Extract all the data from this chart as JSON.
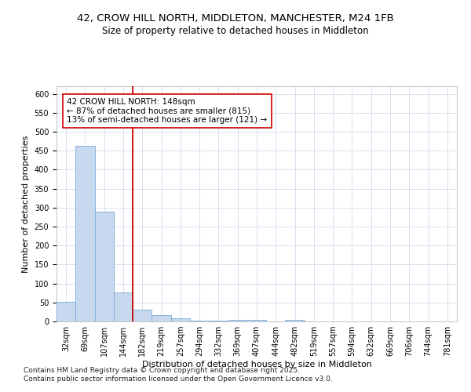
{
  "title_line1": "42, CROW HILL NORTH, MIDDLETON, MANCHESTER, M24 1FB",
  "title_line2": "Size of property relative to detached houses in Middleton",
  "xlabel": "Distribution of detached houses by size in Middleton",
  "ylabel": "Number of detached properties",
  "categories": [
    "32sqm",
    "69sqm",
    "107sqm",
    "144sqm",
    "182sqm",
    "219sqm",
    "257sqm",
    "294sqm",
    "332sqm",
    "369sqm",
    "407sqm",
    "444sqm",
    "482sqm",
    "519sqm",
    "557sqm",
    "594sqm",
    "632sqm",
    "669sqm",
    "706sqm",
    "744sqm",
    "781sqm"
  ],
  "values": [
    52,
    462,
    290,
    76,
    30,
    16,
    8,
    3,
    3,
    5,
    5,
    0,
    5,
    0,
    0,
    0,
    0,
    0,
    0,
    0,
    0
  ],
  "bar_color": "#c8d8ee",
  "bar_edge_color": "#7aaadd",
  "grid_color": "#d8e0ee",
  "background_color": "#ffffff",
  "plot_bg_color": "#ffffff",
  "red_line_x": 3.5,
  "annotation_text": "42 CROW HILL NORTH: 148sqm\n← 87% of detached houses are smaller (815)\n13% of semi-detached houses are larger (121) →",
  "annotation_box_color": "#ffffff",
  "annotation_text_color": "#000000",
  "red_line_color": "#cc0000",
  "ylim": [
    0,
    620
  ],
  "yticks": [
    0,
    50,
    100,
    150,
    200,
    250,
    300,
    350,
    400,
    450,
    500,
    550,
    600
  ],
  "footer_line1": "Contains HM Land Registry data © Crown copyright and database right 2025.",
  "footer_line2": "Contains public sector information licensed under the Open Government Licence v3.0.",
  "title_fontsize": 9.5,
  "subtitle_fontsize": 8.5,
  "axis_label_fontsize": 8,
  "tick_fontsize": 7,
  "annotation_fontsize": 7.5,
  "footer_fontsize": 6.5
}
